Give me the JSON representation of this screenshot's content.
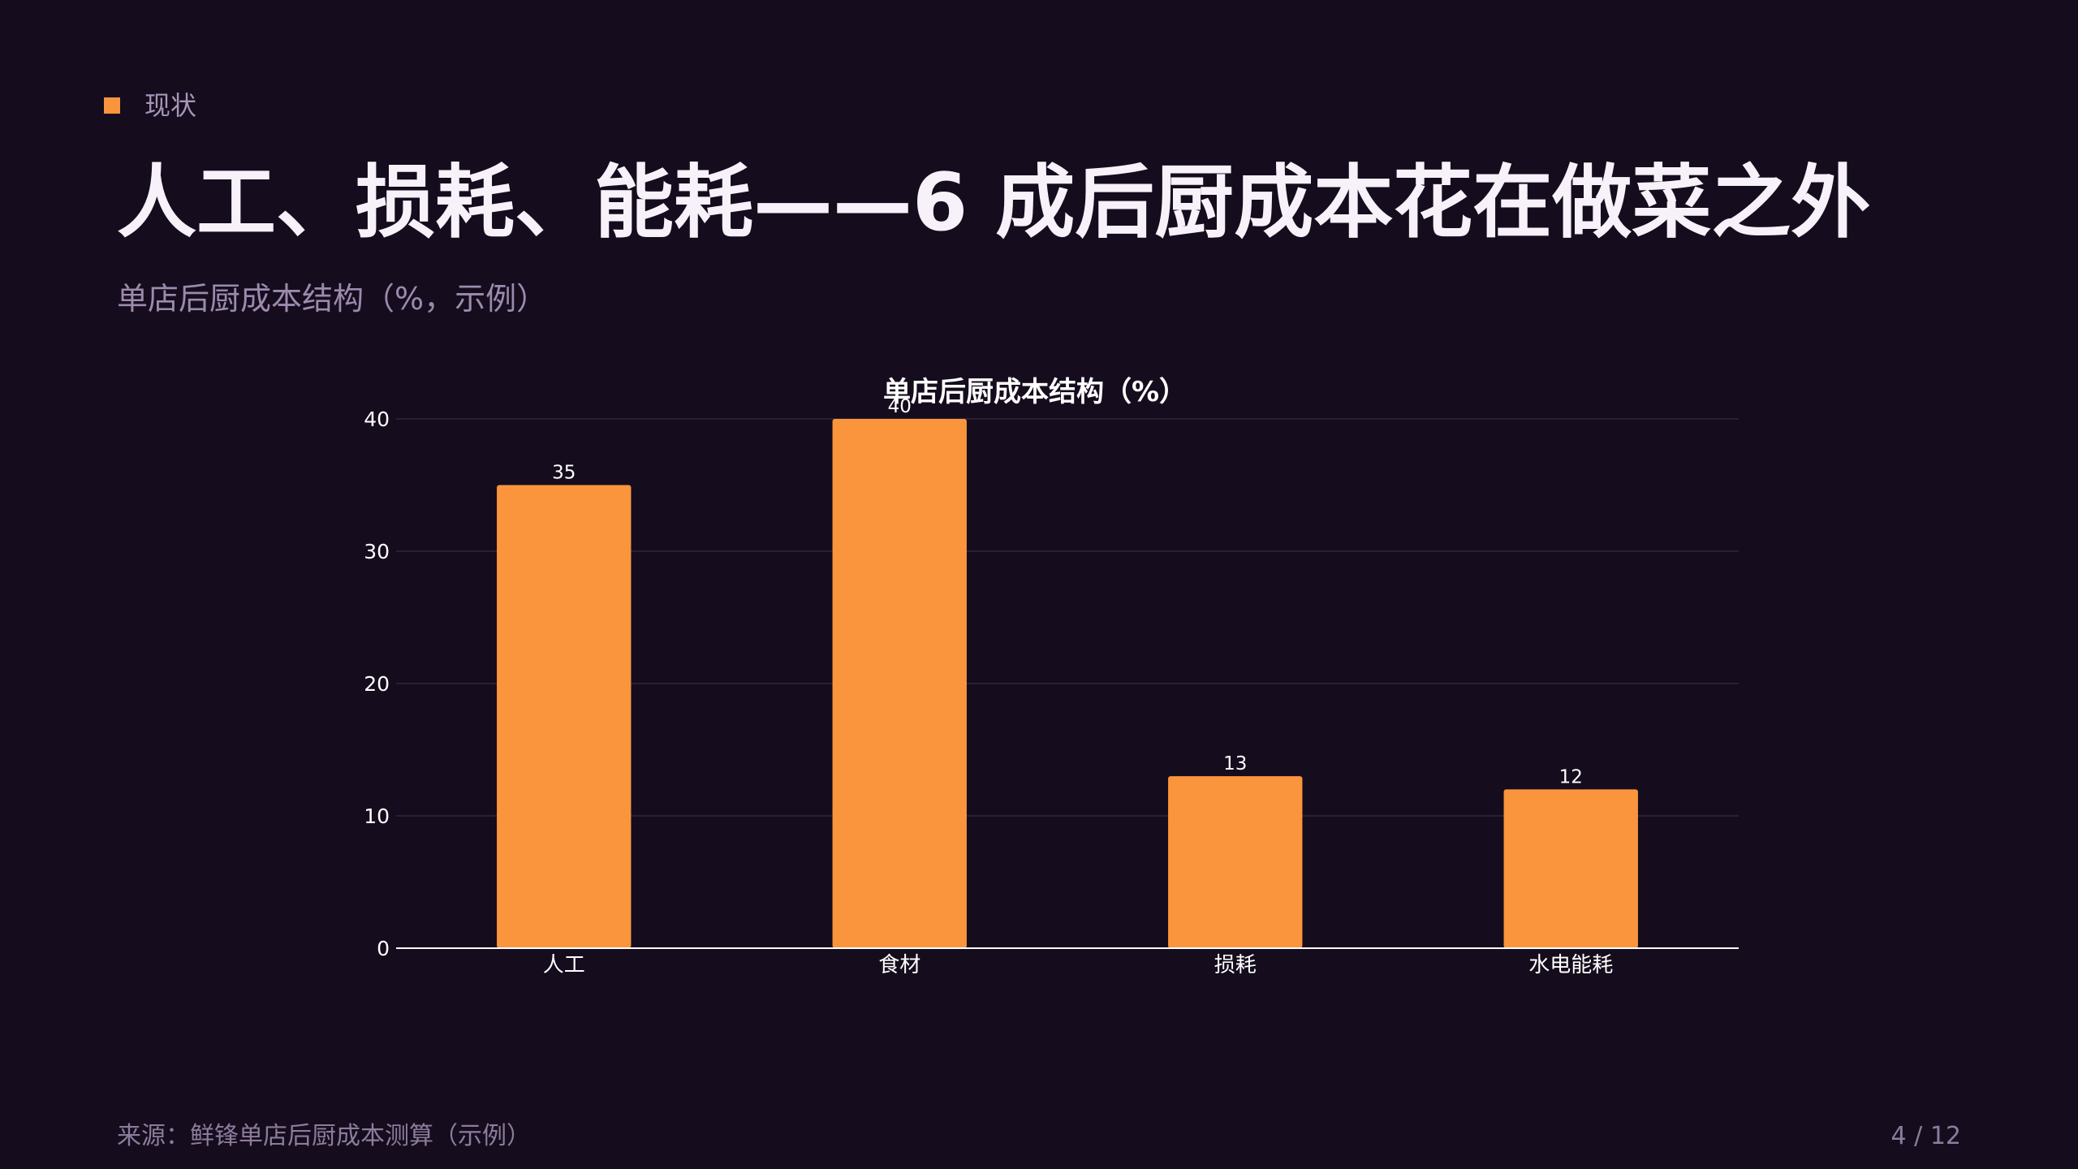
{
  "section": {
    "label": "现状",
    "marker_color": "#fa943d"
  },
  "title": "人工、损耗、能耗——6 成后厨成本花在做菜之外",
  "subtitle": "单店后厨成本结构（%，示例）",
  "chart_data": {
    "type": "bar",
    "title": "单店后厨成本结构（%）",
    "categories": [
      "人工",
      "食材",
      "损耗",
      "水电能耗"
    ],
    "values": [
      35,
      40,
      13,
      12
    ],
    "data_labels": [
      "35",
      "40",
      "13",
      "12"
    ],
    "ylim": [
      0,
      40
    ],
    "yticks": [
      0,
      10,
      20,
      30,
      40
    ],
    "xlabel": "",
    "ylabel": "",
    "grid": true,
    "bar_color": "#fa943d",
    "grid_color": "#2a1f36",
    "axis_color": "#ffffff",
    "text_color": "#ffffff"
  },
  "footer": {
    "source": "来源：鲜锋单店后厨成本测算（示例）",
    "page": "4 / 12"
  },
  "colors": {
    "background": "#150c1d",
    "accent": "#fa943d",
    "title": "#f7f1fa",
    "muted": "#9c8aae"
  }
}
